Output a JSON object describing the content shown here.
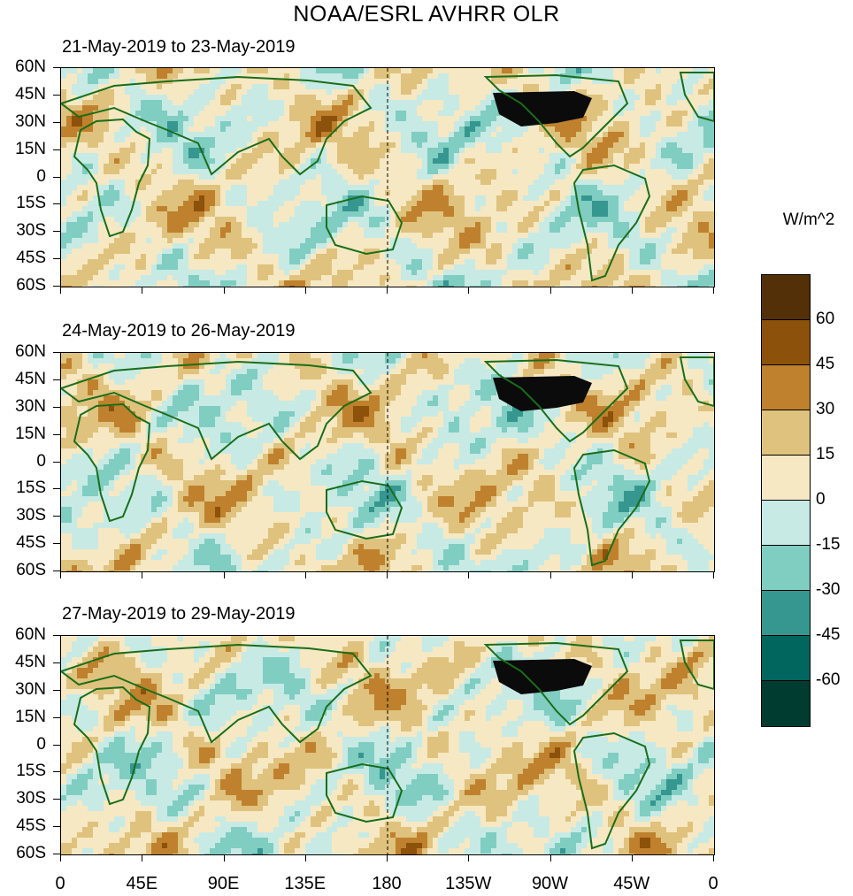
{
  "title": "NOAA/ESRL AVHRR OLR",
  "panels": [
    {
      "label": "21-May-2019 to 23-May-2019"
    },
    {
      "label": "24-May-2019 to 26-May-2019"
    },
    {
      "label": "27-May-2019 to 29-May-2019"
    }
  ],
  "lat_labels": [
    "60N",
    "45N",
    "30N",
    "15N",
    "0",
    "15S",
    "30S",
    "45S",
    "60S"
  ],
  "lon_labels": [
    "0",
    "45E",
    "90E",
    "135E",
    "180",
    "135W",
    "90W",
    "45W",
    "0"
  ],
  "colorbar": {
    "units": "W/m^2",
    "labels": [
      "60",
      "45",
      "30",
      "15",
      "0",
      "-15",
      "-30",
      "-45",
      "-60"
    ],
    "colors": [
      "#533008",
      "#8c510a",
      "#bf812d",
      "#dfc27d",
      "#f6e8c3",
      "#c7eae5",
      "#80cdc1",
      "#35978f",
      "#01665e",
      "#003c30"
    ]
  },
  "map": {
    "coast_color": "#1a6e1a",
    "dateline_style": "dashed"
  }
}
